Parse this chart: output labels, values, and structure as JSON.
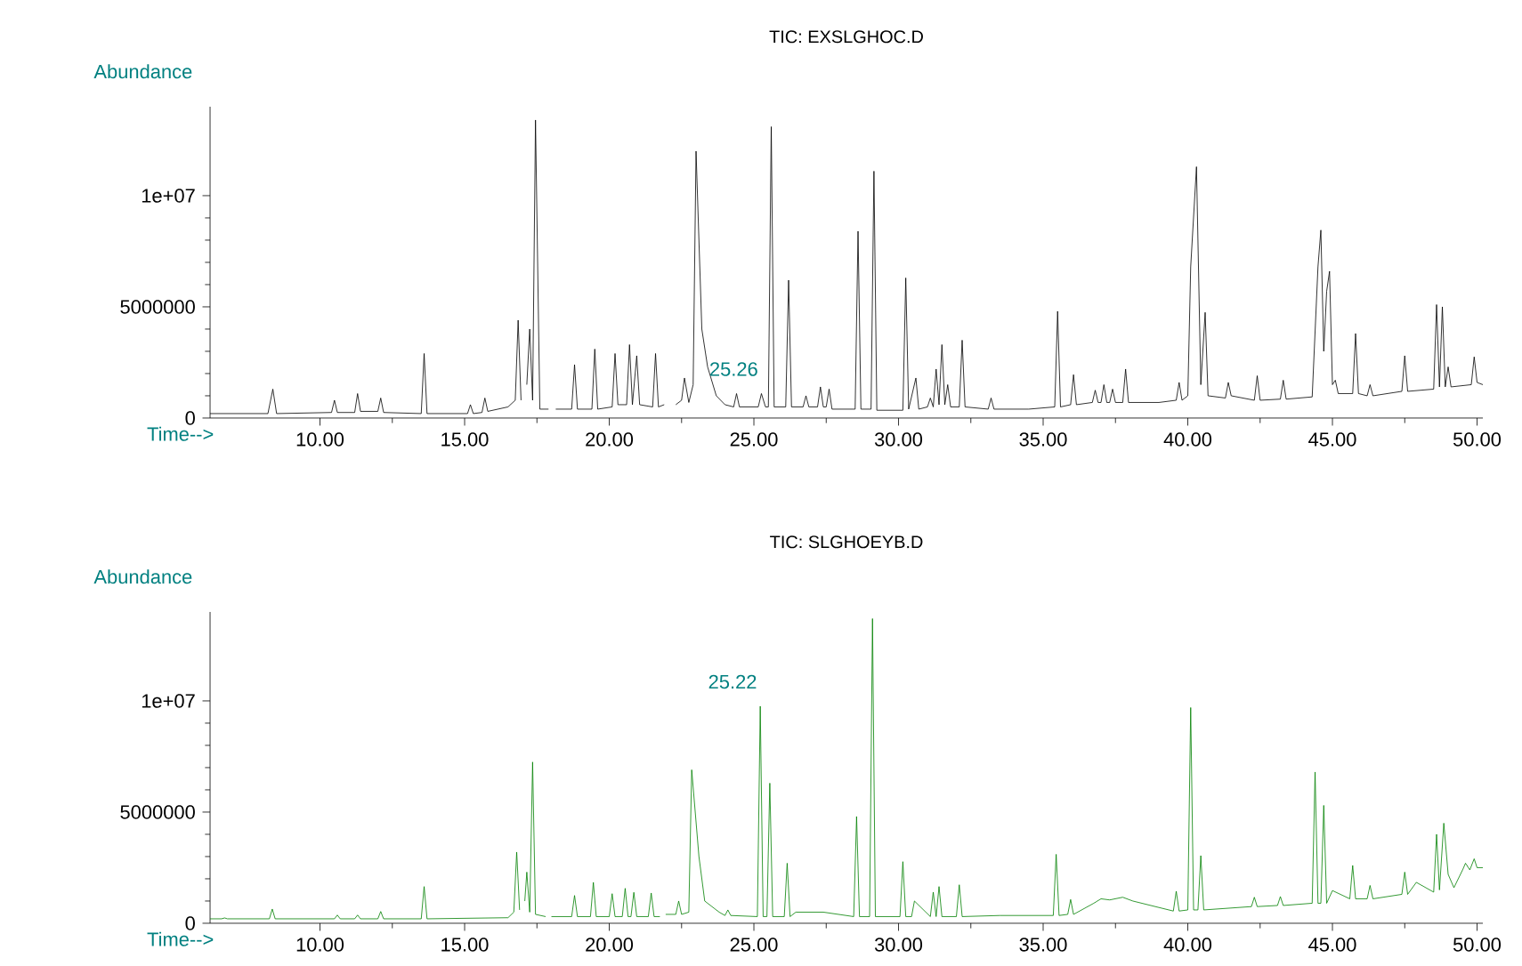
{
  "chart_data": [
    {
      "type": "line",
      "title": "TIC: EXSLGHOC.D",
      "xlabel": "Time-->",
      "ylabel": "Abundance",
      "x": [
        6.2,
        8.2,
        8.37,
        8.5,
        10.4,
        10.5,
        10.6,
        11.2,
        11.3,
        11.4,
        12.0,
        12.1,
        12.2,
        13.5,
        13.6,
        13.7,
        15.1,
        15.2,
        15.3,
        15.6,
        15.7,
        15.8,
        16.5,
        16.75,
        16.85,
        16.95,
        17.05,
        17.15,
        17.25,
        17.35,
        17.45,
        17.6,
        17.9,
        18.0,
        18.15,
        18.7,
        18.8,
        18.9,
        19.4,
        19.5,
        19.6,
        20.1,
        20.2,
        20.3,
        20.6,
        20.7,
        20.8,
        20.95,
        21.05,
        21.5,
        21.6,
        21.7,
        21.9,
        22.0,
        22.15,
        22.3,
        22.5,
        22.6,
        22.75,
        22.9,
        23.0,
        23.2,
        23.4,
        23.7,
        24.0,
        24.3,
        24.4,
        24.5,
        25.15,
        25.26,
        25.4,
        25.5,
        25.6,
        25.7,
        26.1,
        26.2,
        26.3,
        26.7,
        26.8,
        26.9,
        27.2,
        27.3,
        27.4,
        27.5,
        27.6,
        27.7,
        28.5,
        28.6,
        28.7,
        29.05,
        29.15,
        29.25,
        30.15,
        30.25,
        30.35,
        30.6,
        30.7,
        31.0,
        31.1,
        31.2,
        31.3,
        31.4,
        31.5,
        31.6,
        31.7,
        31.8,
        32.1,
        32.2,
        32.3,
        33.1,
        33.2,
        33.3,
        34.5,
        35.4,
        35.5,
        35.6,
        35.95,
        36.05,
        36.15,
        36.7,
        36.8,
        36.9,
        37.0,
        37.1,
        37.2,
        37.3,
        37.4,
        37.5,
        37.75,
        37.85,
        37.95,
        39.0,
        39.6,
        39.7,
        39.8,
        40.0,
        40.1,
        40.3,
        40.45,
        40.6,
        40.7,
        41.3,
        41.4,
        41.5,
        42.3,
        42.4,
        42.5,
        43.2,
        43.3,
        43.4,
        44.3,
        44.5,
        44.6,
        44.7,
        44.8,
        44.9,
        45.0,
        45.1,
        45.2,
        45.7,
        45.8,
        45.9,
        46.2,
        46.3,
        46.4,
        47.4,
        47.5,
        47.6,
        48.5,
        48.6,
        48.7,
        48.8,
        48.9,
        49.0,
        49.1,
        49.8,
        49.9,
        50.0,
        50.2
      ],
      "series": [
        {
          "color": "#000000",
          "values": [
            200000.0,
            200000.0,
            1300000.0,
            200000.0,
            250000.0,
            800000.0,
            250000.0,
            250000.0,
            1100000.0,
            300000.0,
            300000.0,
            900000.0,
            250000.0,
            200000.0,
            2900000.0,
            200000.0,
            200000.0,
            600000.0,
            200000.0,
            250000.0,
            900000.0,
            300000.0,
            500000.0,
            800000.0,
            4400000.0,
            800000.0,
            null,
            1500000.0,
            4000000.0,
            800000.0,
            13400000.0,
            400000.0,
            400000.0,
            null,
            400000.0,
            400000.0,
            2400000.0,
            400000.0,
            400000.0,
            3100000.0,
            400000.0,
            500000.0,
            2900000.0,
            600000.0,
            600000.0,
            3300000.0,
            600000.0,
            2800000.0,
            600000.0,
            500000.0,
            2900000.0,
            500000.0,
            600000.0,
            null,
            null,
            600000.0,
            800000.0,
            1800000.0,
            700000.0,
            1500000.0,
            12000000.0,
            4000000.0,
            2300000.0,
            1000000.0,
            600000.0,
            500000.0,
            1100000.0,
            500000.0,
            500000.0,
            1100000.0,
            500000.0,
            500000.0,
            13100000.0,
            500000.0,
            500000.0,
            6200000.0,
            500000.0,
            500000.0,
            1000000.0,
            500000.0,
            500000.0,
            1400000.0,
            500000.0,
            500000.0,
            1300000.0,
            400000.0,
            400000.0,
            8400000.0,
            400000.0,
            400000.0,
            11100000.0,
            350000.0,
            350000.0,
            6300000.0,
            400000.0,
            1800000.0,
            400000.0,
            500000.0,
            900000.0,
            500000.0,
            2200000.0,
            600000.0,
            3300000.0,
            600000.0,
            1500000.0,
            500000.0,
            500000.0,
            3500000.0,
            500000.0,
            400000.0,
            900000.0,
            400000.0,
            400000.0,
            500000.0,
            4800000.0,
            500000.0,
            600000.0,
            1950000.0,
            600000.0,
            700000.0,
            1250000.0,
            700000.0,
            700000.0,
            1500000.0,
            700000.0,
            700000.0,
            1300000.0,
            700000.0,
            700000.0,
            2200000.0,
            700000.0,
            700000.0,
            800000.0,
            1600000.0,
            800000.0,
            1000000.0,
            6800000.0,
            11300000.0,
            1500000.0,
            4750000.0,
            1000000.0,
            900000.0,
            1600000.0,
            1000000.0,
            800000.0,
            1900000.0,
            800000.0,
            850000.0,
            1700000.0,
            850000.0,
            950000.0,
            6800000.0,
            8450000.0,
            3000000.0,
            5700000.0,
            6600000.0,
            1500000.0,
            1700000.0,
            1100000.0,
            1100000.0,
            3800000.0,
            1100000.0,
            1000000.0,
            1500000.0,
            1000000.0,
            1200000.0,
            2800000.0,
            1200000.0,
            1300000.0,
            5100000.0,
            1400000.0,
            5000000.0,
            1400000.0,
            2300000.0,
            1400000.0,
            1500000.0,
            2750000.0,
            1600000.0,
            1500000.0
          ]
        }
      ],
      "xlim": [
        6.2,
        50.2
      ],
      "ylim": [
        0,
        14000000
      ],
      "xticks": [
        {
          "value": 10,
          "label": "10.00"
        },
        {
          "value": 15,
          "label": "15.00"
        },
        {
          "value": 20,
          "label": "20.00"
        },
        {
          "value": 25,
          "label": "25.00"
        },
        {
          "value": 30,
          "label": "30.00"
        },
        {
          "value": 35,
          "label": "35.00"
        },
        {
          "value": 40,
          "label": "40.00"
        },
        {
          "value": 45,
          "label": "45.00"
        },
        {
          "value": 50,
          "label": "50.00"
        }
      ],
      "yticks": [
        0,
        5000000,
        {
          "value": 10000000,
          "label": "1e+07"
        }
      ],
      "annotations": [
        {
          "text": "25.26",
          "x": 25.26,
          "y": 1100000
        }
      ]
    },
    {
      "type": "line",
      "title": "TIC: SLGHOEYB.D",
      "xlabel": "Time-->",
      "ylabel": "Abundance",
      "x": [
        6.2,
        6.6,
        6.7,
        6.8,
        8.25,
        8.35,
        8.45,
        10.5,
        10.6,
        10.7,
        11.2,
        11.3,
        11.4,
        12.0,
        12.1,
        12.2,
        13.5,
        13.6,
        13.7,
        16.5,
        16.7,
        16.8,
        16.9,
        17.0,
        17.08,
        17.15,
        17.25,
        17.35,
        17.45,
        17.8,
        17.9,
        18.0,
        18.7,
        18.8,
        18.9,
        19.35,
        19.45,
        19.55,
        20.0,
        20.1,
        20.2,
        20.45,
        20.55,
        20.65,
        20.75,
        20.85,
        20.95,
        21.35,
        21.45,
        21.55,
        21.75,
        21.85,
        21.95,
        22.3,
        22.4,
        22.5,
        22.75,
        22.85,
        23.1,
        23.3,
        23.8,
        24.0,
        24.1,
        24.2,
        25.12,
        25.22,
        25.32,
        25.45,
        25.55,
        25.65,
        26.05,
        26.15,
        26.25,
        26.45,
        27.1,
        27.4,
        28.45,
        28.55,
        28.65,
        29.0,
        29.1,
        29.2,
        30.05,
        30.15,
        30.25,
        30.45,
        30.55,
        31.1,
        31.2,
        31.3,
        31.4,
        31.5,
        32.0,
        32.1,
        32.2,
        33.5,
        35.35,
        35.45,
        35.55,
        35.85,
        35.95,
        36.05,
        36.75,
        37.0,
        37.3,
        37.75,
        38.1,
        39.5,
        39.6,
        39.7,
        40.0,
        40.1,
        40.2,
        40.35,
        40.45,
        40.55,
        42.2,
        42.3,
        42.4,
        43.1,
        43.2,
        43.3,
        44.3,
        44.4,
        44.5,
        44.6,
        44.7,
        44.8,
        45.0,
        45.6,
        45.7,
        45.8,
        46.2,
        46.3,
        46.4,
        47.4,
        47.5,
        47.6,
        47.9,
        48.5,
        48.6,
        48.7,
        48.85,
        49.0,
        49.2,
        49.5,
        49.6,
        49.75,
        49.9,
        50.0,
        50.2
      ],
      "series": [
        {
          "color": "#008000",
          "values": [
            200000.0,
            200000.0,
            240000.0,
            200000.0,
            200000.0,
            640000.0,
            200000.0,
            200000.0,
            370000.0,
            200000.0,
            200000.0,
            370000.0,
            200000.0,
            200000.0,
            530000.0,
            200000.0,
            200000.0,
            1650000.0,
            200000.0,
            250000.0,
            500000.0,
            3200000.0,
            600000.0,
            null,
            1000000.0,
            2300000.0,
            500000.0,
            7250000.0,
            400000.0,
            300000.0,
            null,
            300000.0,
            300000.0,
            1250000.0,
            300000.0,
            300000.0,
            1840000.0,
            300000.0,
            300000.0,
            1330000.0,
            300000.0,
            300000.0,
            1570000.0,
            300000.0,
            300000.0,
            1390000.0,
            300000.0,
            300000.0,
            1360000.0,
            300000.0,
            300000.0,
            null,
            400000.0,
            400000.0,
            1000000.0,
            400000.0,
            500000.0,
            6900000.0,
            3000000.0,
            1000000.0,
            500000.0,
            350000.0,
            600000.0,
            350000.0,
            300000.0,
            9760000.0,
            300000.0,
            300000.0,
            6300000.0,
            300000.0,
            300000.0,
            2700000.0,
            300000.0,
            500000.0,
            500000.0,
            500000.0,
            300000.0,
            4800000.0,
            300000.0,
            300000.0,
            13700000.0,
            300000.0,
            300000.0,
            2770000.0,
            300000.0,
            300000.0,
            1000000.0,
            300000.0,
            1400000.0,
            300000.0,
            1650000.0,
            300000.0,
            300000.0,
            1730000.0,
            300000.0,
            350000.0,
            350000.0,
            3100000.0,
            350000.0,
            400000.0,
            1070000.0,
            400000.0,
            900000.0,
            1100000.0,
            1050000.0,
            1170000.0,
            1000000.0,
            550000.0,
            1440000.0,
            550000.0,
            600000.0,
            9700000.0,
            600000.0,
            600000.0,
            3040000.0,
            600000.0,
            750000.0,
            1170000.0,
            750000.0,
            800000.0,
            1200000.0,
            800000.0,
            900000.0,
            6800000.0,
            900000.0,
            900000.0,
            5300000.0,
            900000.0,
            1470000.0,
            1100000.0,
            2600000.0,
            1100000.0,
            1100000.0,
            1700000.0,
            1100000.0,
            1300000.0,
            2300000.0,
            1300000.0,
            1840000.0,
            1400000.0,
            4000000.0,
            1500000.0,
            4500000.0,
            2200000.0,
            1600000.0,
            2400000.0,
            2700000.0,
            2400000.0,
            2900000.0,
            2500000.0,
            2500000.0
          ]
        }
      ],
      "xlim": [
        6.2,
        50.2
      ],
      "ylim": [
        0,
        14000000
      ],
      "xticks": [
        {
          "value": 10,
          "label": "10.00"
        },
        {
          "value": 15,
          "label": "15.00"
        },
        {
          "value": 20,
          "label": "20.00"
        },
        {
          "value": 25,
          "label": "25.00"
        },
        {
          "value": 30,
          "label": "30.00"
        },
        {
          "value": 35,
          "label": "35.00"
        },
        {
          "value": 40,
          "label": "40.00"
        },
        {
          "value": 45,
          "label": "45.00"
        },
        {
          "value": 50,
          "label": "50.00"
        }
      ],
      "yticks": [
        0,
        5000000,
        {
          "value": 10000000,
          "label": "1e+07"
        }
      ],
      "annotations": [
        {
          "text": "25.22",
          "x": 25.22,
          "y": 9760000
        }
      ]
    }
  ]
}
